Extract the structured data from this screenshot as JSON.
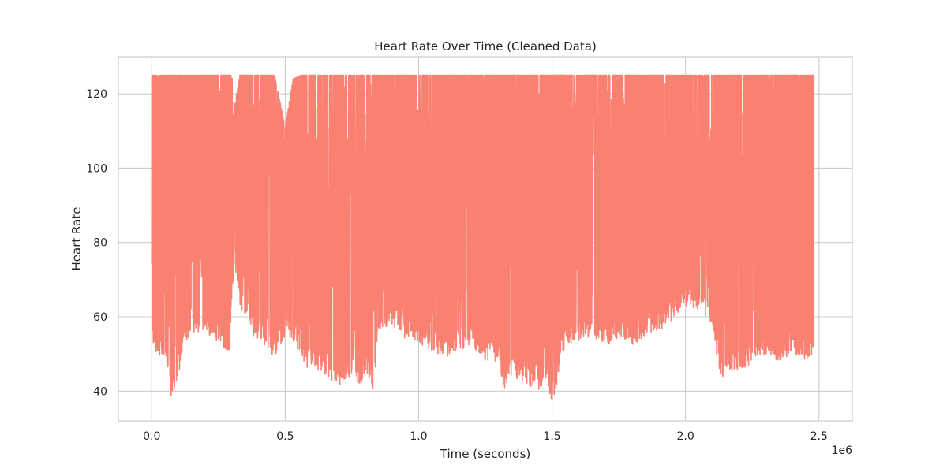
{
  "chart_data": {
    "type": "line",
    "title": "Heart Rate Over Time (Cleaned Data)",
    "xlabel": "Time (seconds)",
    "ylabel": "Heart Rate",
    "x_offset_label": "1e6",
    "xlim": [
      -0.125,
      2.625
    ],
    "ylim": [
      32,
      130
    ],
    "xticks": [
      0.0,
      0.5,
      1.0,
      1.5,
      2.0,
      2.5
    ],
    "xtick_labels": [
      "0.0",
      "0.5",
      "1.0",
      "1.5",
      "2.0",
      "2.5"
    ],
    "yticks": [
      40,
      60,
      80,
      100,
      120
    ],
    "ytick_labels": [
      "40",
      "60",
      "80",
      "100",
      "120"
    ],
    "grid": true,
    "series": [
      {
        "color": "#fa8072",
        "x_range": [
          0.0,
          2.48
        ],
        "upper_envelope": [
          [
            0.0,
            125
          ],
          [
            0.3,
            125
          ],
          [
            0.31,
            116
          ],
          [
            0.33,
            125
          ],
          [
            0.46,
            125
          ],
          [
            0.5,
            111
          ],
          [
            0.53,
            124
          ],
          [
            0.56,
            125
          ],
          [
            2.48,
            125
          ]
        ],
        "lower_envelope": [
          [
            0.0,
            52
          ],
          [
            0.02,
            50
          ],
          [
            0.05,
            49
          ],
          [
            0.07,
            38
          ],
          [
            0.1,
            44
          ],
          [
            0.12,
            53
          ],
          [
            0.15,
            55
          ],
          [
            0.2,
            56
          ],
          [
            0.25,
            53
          ],
          [
            0.29,
            50
          ],
          [
            0.31,
            75
          ],
          [
            0.33,
            63
          ],
          [
            0.38,
            55
          ],
          [
            0.42,
            52
          ],
          [
            0.46,
            49
          ],
          [
            0.5,
            55
          ],
          [
            0.55,
            51
          ],
          [
            0.57,
            46
          ],
          [
            0.6,
            47
          ],
          [
            0.65,
            44
          ],
          [
            0.7,
            41
          ],
          [
            0.75,
            43
          ],
          [
            0.78,
            41
          ],
          [
            0.8,
            45
          ],
          [
            0.83,
            40
          ],
          [
            0.85,
            56
          ],
          [
            0.9,
            58
          ],
          [
            0.95,
            54
          ],
          [
            1.0,
            52
          ],
          [
            1.05,
            51
          ],
          [
            1.1,
            49
          ],
          [
            1.15,
            51
          ],
          [
            1.2,
            52
          ],
          [
            1.25,
            48
          ],
          [
            1.3,
            48
          ],
          [
            1.32,
            40
          ],
          [
            1.34,
            44
          ],
          [
            1.4,
            42
          ],
          [
            1.45,
            40
          ],
          [
            1.48,
            43
          ],
          [
            1.5,
            36
          ],
          [
            1.52,
            42
          ],
          [
            1.55,
            53
          ],
          [
            1.6,
            53
          ],
          [
            1.65,
            55
          ],
          [
            1.7,
            52
          ],
          [
            1.75,
            54
          ],
          [
            1.8,
            52
          ],
          [
            1.85,
            55
          ],
          [
            1.9,
            56
          ],
          [
            1.95,
            59
          ],
          [
            2.0,
            63
          ],
          [
            2.05,
            62
          ],
          [
            2.1,
            58
          ],
          [
            2.13,
            43
          ],
          [
            2.17,
            45
          ],
          [
            2.22,
            46
          ],
          [
            2.3,
            50
          ],
          [
            2.35,
            48
          ],
          [
            2.4,
            50
          ],
          [
            2.45,
            48
          ],
          [
            2.48,
            49
          ]
        ],
        "min": 36,
        "max": 125
      }
    ]
  }
}
